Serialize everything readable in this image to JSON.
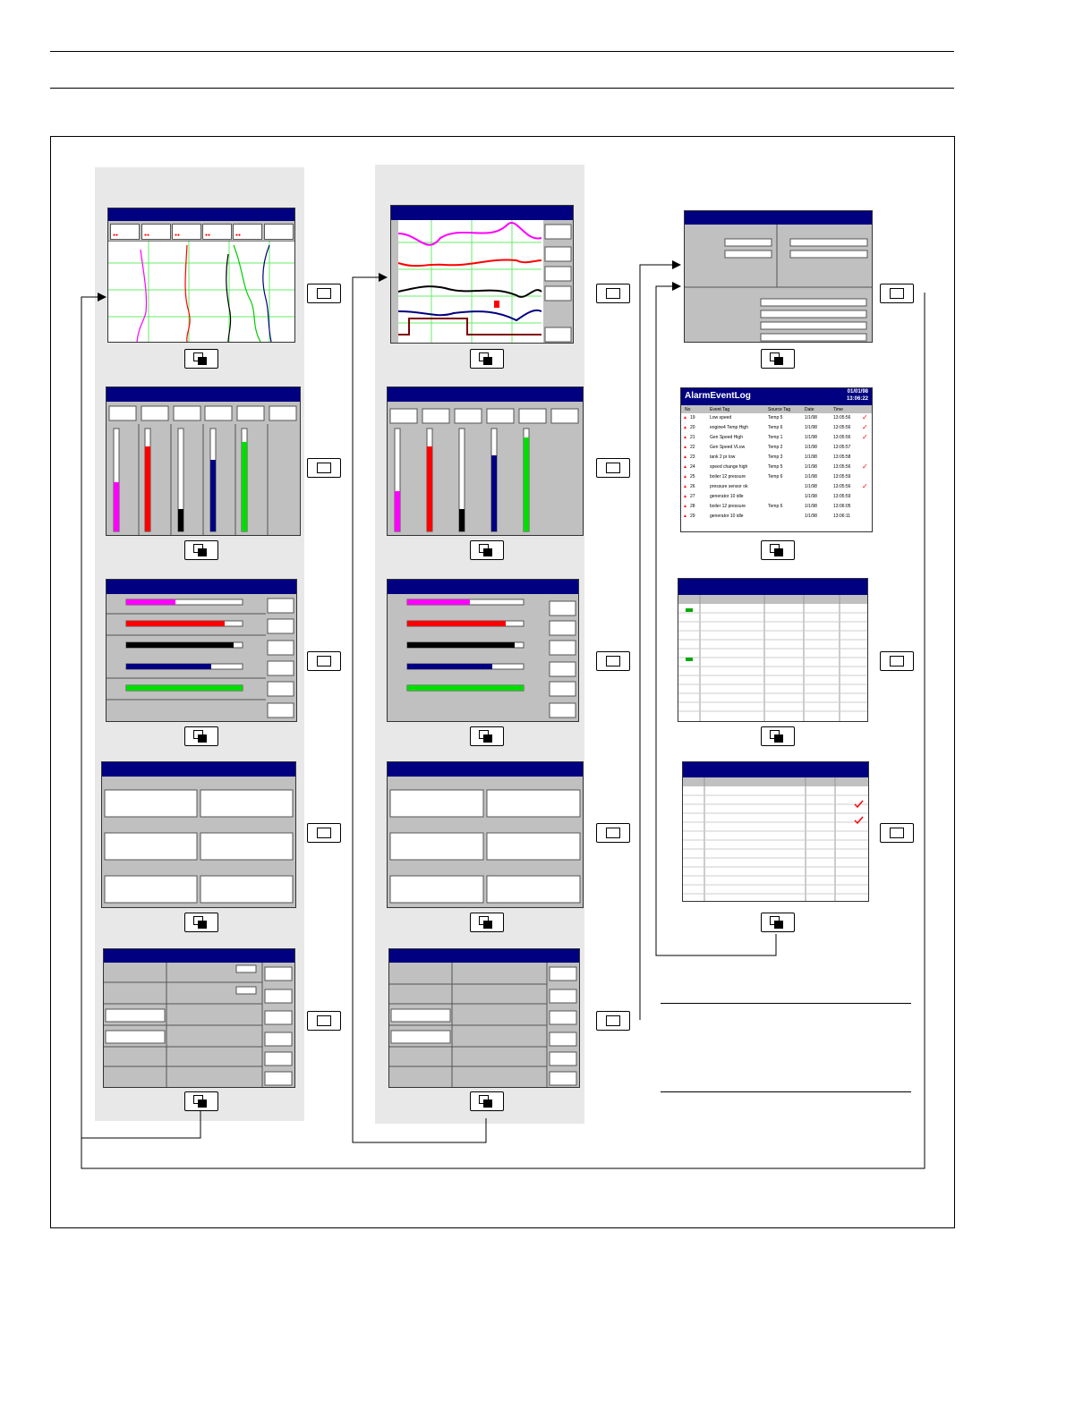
{
  "alarm_log": {
    "title": "AlarmEventLog",
    "date": "01/01/98",
    "time": "13:06:22",
    "columns": [
      "No",
      "Event Tag",
      "Source Tag",
      "Date",
      "Time"
    ],
    "rows": [
      {
        "no": "19",
        "tag": "Low speed",
        "src": "Temp 5",
        "date": "1/1/98",
        "time": "13:05:56",
        "ack": true
      },
      {
        "no": "20",
        "tag": "engine4 Temp High",
        "src": "Temp 6",
        "date": "1/1/98",
        "time": "13:05:56",
        "ack": true
      },
      {
        "no": "21",
        "tag": "Gen Speed High",
        "src": "Temp 1",
        "date": "1/1/98",
        "time": "13:05:56",
        "ack": true
      },
      {
        "no": "22",
        "tag": "Gen Speed VLow",
        "src": "Temp 2",
        "date": "1/1/98",
        "time": "13:05:57",
        "ack": false
      },
      {
        "no": "23",
        "tag": "tank 2 pr low",
        "src": "Temp 3",
        "date": "1/1/98",
        "time": "13:05:58",
        "ack": false
      },
      {
        "no": "24",
        "tag": "speed change high",
        "src": "Temp 5",
        "date": "1/1/98",
        "time": "13:05:56",
        "ack": true
      },
      {
        "no": "25",
        "tag": "boiler 12 pressure",
        "src": "Temp 6",
        "date": "1/1/98",
        "time": "13:05:59",
        "ack": false
      },
      {
        "no": "26",
        "tag": "pressure sensor ok",
        "src": "",
        "date": "1/1/98",
        "time": "13:05:56",
        "ack": true
      },
      {
        "no": "27",
        "tag": "generator 10 idle",
        "src": "",
        "date": "1/1/98",
        "time": "13:05:59",
        "ack": false
      },
      {
        "no": "28",
        "tag": "boiler 12 pressure",
        "src": "Temp 6",
        "date": "1/1/98",
        "time": "13:06:05",
        "ack": false
      },
      {
        "no": "29",
        "tag": "generator 10 idle",
        "src": "",
        "date": "1/1/98",
        "time": "13:06:11",
        "ack": false
      }
    ]
  },
  "colors": {
    "title_bar": "#000080",
    "magenta": "#ff00ff",
    "red": "#ff0000",
    "black": "#000000",
    "blue": "#000080",
    "green": "#00dd00",
    "grid": "#66ee66",
    "background_column": "#e8e8e8"
  },
  "icons": {
    "forward_key": "grid-key-icon",
    "page_key": "page-key-icon"
  }
}
